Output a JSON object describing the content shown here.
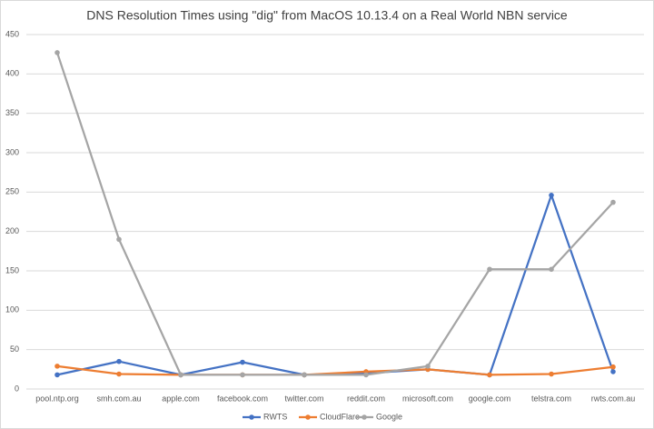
{
  "chart_data": {
    "type": "line",
    "title": "DNS Resolution Times using \"dig\" from MacOS 10.13.4 on a Real World NBN service",
    "categories": [
      "pool.ntp.org",
      "smh.com.au",
      "apple.com",
      "facebook.com",
      "twitter.com",
      "reddit.com",
      "microsoft.com",
      "google.com",
      "telstra.com",
      "rwts.com.au"
    ],
    "series": [
      {
        "name": "RWTS",
        "color": "#4472c4",
        "values": [
          18,
          35,
          18,
          34,
          18,
          20,
          25,
          18,
          246,
          22
        ]
      },
      {
        "name": "CloudFlare",
        "color": "#ed7d31",
        "values": [
          29,
          19,
          18,
          18,
          18,
          22,
          25,
          18,
          19,
          28
        ]
      },
      {
        "name": "Google",
        "color": "#a5a5a5",
        "values": [
          427,
          190,
          18,
          18,
          18,
          18,
          29,
          152,
          152,
          237
        ]
      }
    ],
    "ylim": [
      0,
      450
    ],
    "yticks": [
      0,
      50,
      100,
      150,
      200,
      250,
      300,
      350,
      400,
      450
    ],
    "grid": true,
    "legend": "bottom"
  }
}
